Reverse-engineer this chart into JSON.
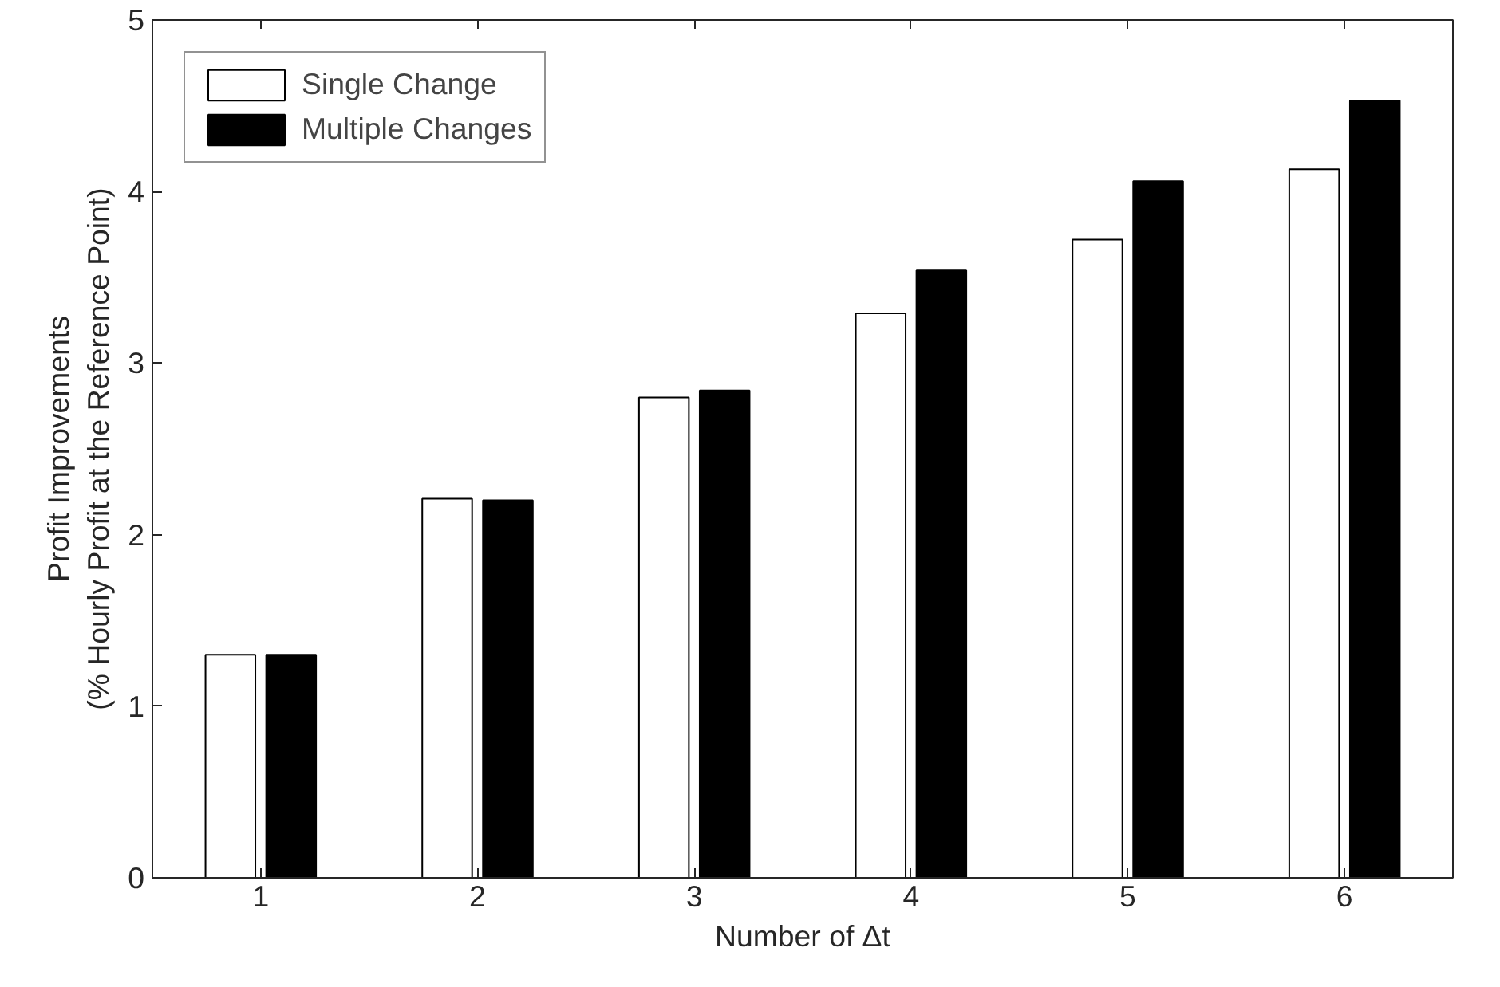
{
  "chart_data": {
    "type": "bar",
    "xlabel": "Number of Δt",
    "ylabel": "Profit Improvements\n(% Hourly Profit at the Reference Point)",
    "categories": [
      "1",
      "2",
      "3",
      "4",
      "5",
      "6"
    ],
    "series": [
      {
        "name": "Single Change",
        "color": "#ffffff",
        "values": [
          1.3,
          2.21,
          2.8,
          3.29,
          3.72,
          4.13
        ]
      },
      {
        "name": "Multiple Changes",
        "color": "#000000",
        "values": [
          1.3,
          2.2,
          2.84,
          3.54,
          4.06,
          4.53
        ]
      }
    ],
    "ylim": [
      0,
      5
    ],
    "yticks": [
      0,
      1,
      2,
      3,
      4,
      5
    ],
    "grid": false,
    "legend": "top left"
  }
}
